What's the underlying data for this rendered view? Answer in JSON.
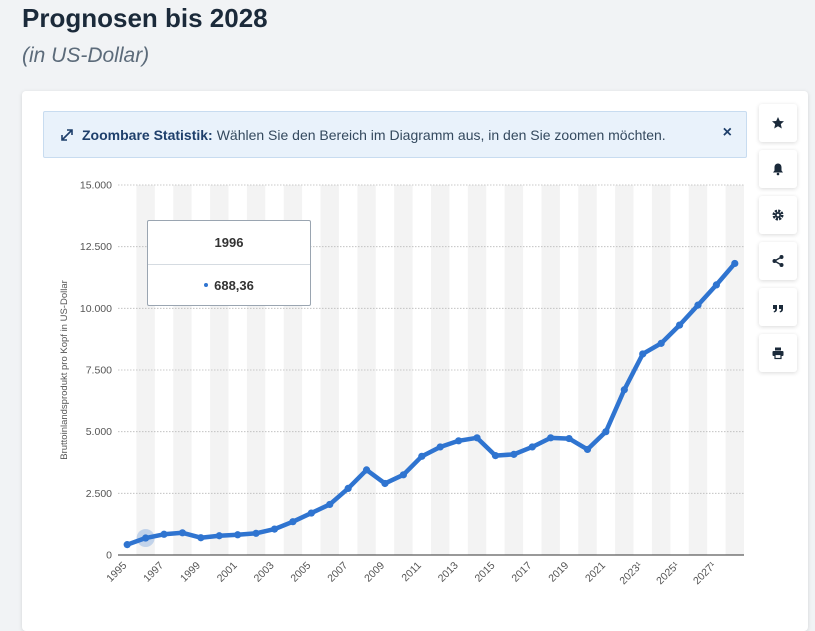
{
  "header": {
    "title": "Prognosen bis 2028",
    "subtitle": "(in US-Dollar)"
  },
  "zoom_notice": {
    "label": "Zoombare Statistik:",
    "text": "Wählen Sie den Bereich im Diagramm aus, in den Sie zoomen möchten.",
    "close": "×"
  },
  "tooltip": {
    "year": "1996",
    "value": "688,36"
  },
  "side_buttons": [
    "star-icon",
    "bell-icon",
    "gear-icon",
    "share-icon",
    "quote-icon",
    "print-icon"
  ],
  "colors": {
    "accent": "#2f74d0",
    "band": "#f3f3f3",
    "grid": "#b9b9b9"
  },
  "chart_data": {
    "type": "line",
    "title": "",
    "xlabel": "",
    "ylabel": "Bruttoinlandsprodukt pro Kopf in US-Dollar",
    "ylim": [
      0,
      15000
    ],
    "y_ticks": [
      "0",
      "2.500",
      "5.000",
      "7.500",
      "10.000",
      "12.500",
      "15.000"
    ],
    "y_tick_values": [
      0,
      2500,
      5000,
      7500,
      10000,
      12500,
      15000
    ],
    "x_ticks": [
      "1995",
      "1997",
      "1999",
      "2001",
      "2003",
      "2005",
      "2007",
      "2009",
      "2011",
      "2013",
      "2015",
      "2017",
      "2019",
      "2021",
      "2023¹",
      "2025¹",
      "2027¹"
    ],
    "x": [
      1995,
      1996,
      1997,
      1998,
      1999,
      2000,
      2001,
      2002,
      2003,
      2004,
      2005,
      2006,
      2007,
      2008,
      2009,
      2010,
      2011,
      2012,
      2013,
      2014,
      2015,
      2016,
      2017,
      2018,
      2019,
      2020,
      2021,
      2022,
      2023,
      2024,
      2025,
      2026,
      2027,
      2028
    ],
    "series": [
      {
        "values": [
          420,
          688.36,
          840,
          900,
          700,
          780,
          820,
          880,
          1050,
          1350,
          1700,
          2050,
          2700,
          3450,
          2900,
          3250,
          4000,
          4380,
          4630,
          4750,
          4030,
          4080,
          4380,
          4750,
          4720,
          4280,
          5000,
          6700,
          8150,
          8580,
          9320,
          10130,
          10950,
          11820
        ]
      }
    ],
    "highlight_index": 1,
    "grid": true,
    "legend": "none"
  }
}
